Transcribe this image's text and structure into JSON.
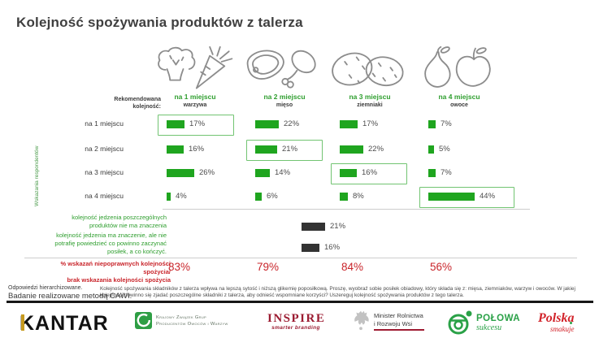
{
  "slide": {
    "title": "Kolejność spożywania produktów z talerza"
  },
  "chart_data": {
    "type": "bar",
    "title": "Kolejność spożywania produktów z talerza",
    "unit": "%",
    "y_axis_label": "Wskazania respondentów",
    "recommended_label": "Rekomendowana\nkolejność:",
    "columns": [
      {
        "place": "na 1 miejscu",
        "product": "warzywa",
        "icon": "vegetables-icon"
      },
      {
        "place": "na 2 miejscu",
        "product": "mięso",
        "icon": "meat-icon"
      },
      {
        "place": "na 3 miejscu",
        "product": "ziemniaki",
        "icon": "potatoes-icon"
      },
      {
        "place": "na 4 miejscu",
        "product": "owoce",
        "icon": "fruits-icon"
      }
    ],
    "rows": [
      "na 1 miejscu",
      "na 2 miejscu",
      "na 3 miejscu",
      "na 4 miejscu"
    ],
    "matrix": [
      [
        17,
        22,
        17,
        7
      ],
      [
        16,
        21,
        22,
        5
      ],
      [
        26,
        14,
        16,
        7
      ],
      [
        4,
        6,
        8,
        44
      ]
    ],
    "highlighted_cells": [
      [
        0,
        0
      ],
      [
        1,
        1
      ],
      [
        2,
        2
      ],
      [
        3,
        3
      ]
    ],
    "other_answers": [
      {
        "label": "kolejność jedzenia poszczególnych produktów nie ma znaczenia",
        "value": 21
      },
      {
        "label": "kolejność jedzenia ma znaczenie, ale nie potrafię powiedzieć co powinno zaczynać posiłek, a co kończyć.",
        "value": 16
      }
    ],
    "incorrect_summary": {
      "label": "% wskazań niepoprawnych kolejności spożycia/\nbrak wskazania kolejności spożycia",
      "values": [
        83,
        79,
        84,
        56
      ]
    },
    "colors": {
      "bar": "#1fa51f",
      "dark_bar": "#333333",
      "highlight_border": "#72c472",
      "accent_red": "#c9252b",
      "label_green": "#2e9e2e"
    }
  },
  "footnotes": {
    "left_line1": "Odpowiedzi hierarchizowane.",
    "left_line2": "Badanie realizowane metodą CAWI.",
    "right": "Kolejność spożywania składników z talerza wpływa na lepszą sytość i niższą glikemię poposiłkową. Proszę, wyobraź sobie posiłek obiadowy, który składa się z: mięsa, ziemniaków, warzyw i owoców. W jakiej kolejności powinno się zjadać poszczególne składniki z talerza, aby odnieść wspomniane korzyści? Uszereguj kolejność spożywania produktów z tego talerza."
  },
  "footer": {
    "kantar": "KANTAR",
    "kzgpow": {
      "line1": "Krajowy Związek Grup",
      "line2": "Producentów Owoców i Warzyw"
    },
    "inspire": {
      "name": "INSPIRE",
      "tagline": "smarter branding"
    },
    "ministry": {
      "line1": "Minister Rolnictwa",
      "line2": "i Rozwoju Wsi"
    },
    "polowa": {
      "name": "POŁOWA",
      "sub": "sukcesu"
    },
    "polska": {
      "name": "Polska",
      "sub": "smakuje"
    }
  }
}
